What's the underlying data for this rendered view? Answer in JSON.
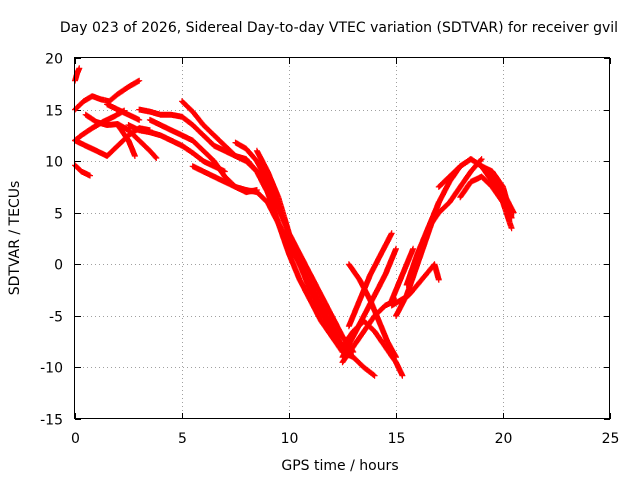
{
  "chart_data": {
    "type": "scatter",
    "title": "Day 023 of 2026, Sidereal Day-to-day VTEC variation (SDTVAR) for receiver gvil",
    "xlabel": "GPS time / hours",
    "ylabel": "SDTVAR / TECUs",
    "xlim": [
      0,
      25
    ],
    "ylim": [
      -15,
      20
    ],
    "xticks": [
      0,
      5,
      10,
      15,
      20,
      25
    ],
    "yticks": [
      -15,
      -10,
      -5,
      0,
      5,
      10,
      15,
      20
    ],
    "grid": true,
    "marker": "+",
    "color": "#ff0000",
    "series": [
      {
        "x": [
          0.0,
          0.3,
          0.7
        ],
        "y": [
          9.6,
          9.0,
          8.6
        ]
      },
      {
        "x": [
          0.0,
          0.3,
          0.8,
          1.3,
          1.8,
          2.3
        ],
        "y": [
          12.0,
          12.5,
          13.2,
          13.8,
          14.3,
          14.9
        ]
      },
      {
        "x": [
          0.0,
          0.4,
          0.8,
          1.2,
          1.6,
          2.0,
          2.5,
          3.0
        ],
        "y": [
          15.0,
          15.8,
          16.3,
          16.0,
          15.8,
          16.5,
          17.2,
          17.8
        ]
      },
      {
        "x": [
          0.0,
          0.1,
          0.2
        ],
        "y": [
          17.8,
          18.5,
          19.0
        ]
      },
      {
        "x": [
          0.0,
          0.5,
          1.0,
          1.5,
          2.0,
          2.5,
          3.0,
          3.5
        ],
        "y": [
          12.0,
          11.5,
          11.0,
          10.5,
          11.5,
          12.5,
          13.2,
          13.0
        ]
      },
      {
        "x": [
          0.5,
          1.0,
          1.5,
          2.0,
          2.5,
          3.0,
          3.5,
          3.8
        ],
        "y": [
          14.5,
          13.8,
          13.5,
          13.6,
          13.0,
          12.0,
          11.0,
          10.3
        ]
      },
      {
        "x": [
          1.5,
          2.0,
          2.5,
          3.0
        ],
        "y": [
          15.5,
          15.0,
          14.5,
          14.0
        ]
      },
      {
        "x": [
          2.0,
          2.5,
          2.8
        ],
        "y": [
          13.5,
          12.0,
          10.5
        ]
      },
      {
        "x": [
          2.5,
          3.0,
          3.5,
          4.0,
          4.5,
          5.0,
          5.5,
          6.0,
          6.5,
          7.0
        ],
        "y": [
          13.5,
          13.0,
          12.8,
          12.5,
          12.0,
          11.5,
          10.8,
          10.0,
          9.5,
          9.0
        ]
      },
      {
        "x": [
          5.0,
          5.5,
          6.0,
          6.5,
          7.0,
          7.5,
          8.0,
          8.5,
          9.0
        ],
        "y": [
          15.8,
          14.8,
          13.5,
          12.5,
          11.5,
          10.5,
          10.2,
          9.0,
          7.0
        ]
      },
      {
        "x": [
          3.0,
          3.5,
          4.0,
          4.5,
          5.0,
          5.5,
          6.0,
          6.5,
          7.0,
          7.5,
          8.0,
          8.5,
          9.0,
          9.5,
          10.0,
          10.5,
          11.0,
          11.5,
          12.0,
          12.5,
          13.0,
          13.5,
          14.0
        ],
        "y": [
          15.0,
          14.8,
          14.5,
          14.5,
          14.3,
          13.5,
          12.5,
          11.5,
          11.0,
          10.5,
          10.0,
          9.0,
          7.0,
          4.0,
          1.0,
          -1.5,
          -3.5,
          -5.5,
          -7.0,
          -8.5,
          -9.0,
          -10.0,
          -10.8
        ]
      },
      {
        "x": [
          3.5,
          4.0,
          4.5,
          5.0,
          5.5,
          6.0,
          6.5,
          7.0,
          7.5,
          8.0,
          8.5
        ],
        "y": [
          14.0,
          13.5,
          13.0,
          12.5,
          12.0,
          11.0,
          10.0,
          8.5,
          7.5,
          7.0,
          7.2
        ]
      },
      {
        "x": [
          5.5,
          6.0,
          6.5,
          7.0,
          7.5,
          8.0,
          8.5,
          9.0,
          9.5,
          10.0,
          10.5,
          11.0,
          11.5,
          12.0,
          12.5,
          13.0
        ],
        "y": [
          9.5,
          9.0,
          8.5,
          8.0,
          7.5,
          7.2,
          7.0,
          6.0,
          4.0,
          2.0,
          0.0,
          -2.0,
          -4.0,
          -6.0,
          -8.0,
          -9.0
        ]
      },
      {
        "x": [
          7.5,
          8.0,
          8.5,
          9.0,
          9.5,
          10.0,
          10.5,
          11.0,
          11.5,
          12.0,
          12.5,
          13.0
        ],
        "y": [
          11.8,
          11.2,
          10.0,
          8.0,
          5.5,
          3.0,
          1.0,
          -1.0,
          -3.0,
          -5.0,
          -7.0,
          -8.5
        ]
      },
      {
        "x": [
          8.5,
          9.0,
          9.5,
          10.0,
          10.5,
          11.0,
          11.5,
          12.0,
          12.5
        ],
        "y": [
          11.0,
          9.0,
          6.5,
          3.0,
          0.0,
          -2.5,
          -4.5,
          -6.5,
          -8.5
        ]
      },
      {
        "x": [
          12.5,
          13.0,
          13.5,
          14.0,
          14.5,
          15.0
        ],
        "y": [
          -9.0,
          -7.0,
          -5.0,
          -3.0,
          -1.0,
          1.5
        ]
      },
      {
        "x": [
          12.5,
          13.0,
          13.5,
          14.0,
          14.5,
          15.0,
          15.3
        ],
        "y": [
          -8.0,
          -6.5,
          -5.5,
          -6.5,
          -8.0,
          -9.5,
          -10.8
        ]
      },
      {
        "x": [
          12.5,
          13.0,
          13.5,
          14.0,
          14.5,
          15.0
        ],
        "y": [
          -9.5,
          -8.0,
          -6.5,
          -5.0,
          -4.0,
          -3.5
        ]
      },
      {
        "x": [
          12.8,
          13.3,
          13.8,
          14.2,
          14.6,
          15.0
        ],
        "y": [
          0.0,
          -1.5,
          -3.5,
          -5.5,
          -7.5,
          -9.0
        ]
      },
      {
        "x": [
          12.8,
          13.3,
          13.8,
          14.3,
          14.8
        ],
        "y": [
          -6.0,
          -3.5,
          -1.0,
          1.0,
          3.0
        ]
      },
      {
        "x": [
          15.0,
          15.5,
          16.0,
          16.5,
          17.0
        ],
        "y": [
          -5.0,
          -3.0,
          0.0,
          3.0,
          6.0
        ]
      },
      {
        "x": [
          14.8,
          15.2,
          15.6,
          16.0,
          16.4,
          16.8,
          17.0
        ],
        "y": [
          -4.0,
          -3.5,
          -3.0,
          -2.0,
          -1.0,
          0.0,
          -1.5
        ]
      },
      {
        "x": [
          14.8,
          15.3,
          15.8
        ],
        "y": [
          -3.5,
          -1.0,
          1.5
        ]
      },
      {
        "x": [
          15.5,
          16.0,
          16.5,
          17.0,
          17.5,
          18.0,
          18.5,
          19.0,
          19.5,
          20.0,
          20.5
        ],
        "y": [
          -2.0,
          1.0,
          3.5,
          6.0,
          8.0,
          9.5,
          10.2,
          9.5,
          8.5,
          7.0,
          5.0
        ]
      },
      {
        "x": [
          16.5,
          17.0,
          17.5,
          18.0,
          18.5,
          19.0
        ],
        "y": [
          3.5,
          5.0,
          6.0,
          7.5,
          9.0,
          10.2
        ]
      },
      {
        "x": [
          17.0,
          17.5,
          18.0,
          18.5,
          19.0,
          19.5,
          20.0,
          20.4
        ],
        "y": [
          7.5,
          8.5,
          9.5,
          10.2,
          9.5,
          8.0,
          6.0,
          3.5
        ]
      },
      {
        "x": [
          18.0,
          18.5,
          19.0,
          19.5,
          20.0,
          20.4
        ],
        "y": [
          6.5,
          8.0,
          8.5,
          7.5,
          6.0,
          5.0
        ]
      },
      {
        "x": [
          19.0,
          19.5,
          20.0,
          20.4
        ],
        "y": [
          9.5,
          9.0,
          7.5,
          4.5
        ]
      }
    ]
  }
}
